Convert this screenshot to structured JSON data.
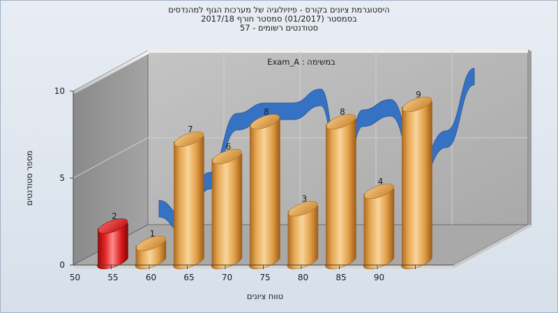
{
  "chart_data": {
    "type": "bar",
    "title": "היסטוגרמת ציונים בקורס - פיזיולוגיה של מערכות הגוף למהנדסים",
    "subtitle_1": "בסמסטר  (01/2017)  סמסטר חורף  2017/18",
    "subtitle_2": "סטודנטים רשומים - 57",
    "annotation": "במשימה : Exam_A",
    "xlabel": "טווח ציונים",
    "ylabel": "מספר סטודנטים",
    "ylim": [
      0,
      10
    ],
    "yticks": [
      "0",
      "5",
      "10"
    ],
    "categories": [
      "50",
      "55",
      "60",
      "65",
      "70",
      "75",
      "80",
      "85",
      "90"
    ],
    "values": [
      2,
      1,
      7,
      6,
      8,
      3,
      8,
      4,
      9
    ],
    "highlight_index": 0,
    "has_curve": true,
    "grid": true,
    "colors": {
      "bar": "#e0a24c",
      "bar_highlight": "#d42020",
      "curve": "#2f6fc4",
      "back_wall": "#b5b5b5",
      "left_wall": "#969696",
      "floor": "#a8a8a8"
    }
  }
}
